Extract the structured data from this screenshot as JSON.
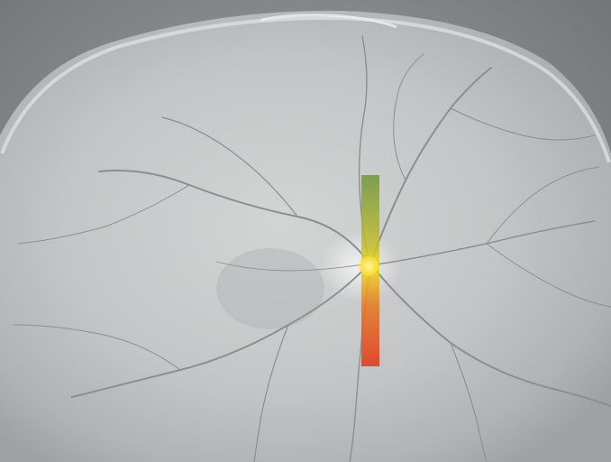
{
  "image": {
    "subject": "fundus-retina",
    "colors": {
      "background": "#ffffff",
      "retina_gray": "#bfc1c2",
      "strip_top": "#6e963c",
      "strip_middle": "#ebdc1e",
      "strip_bottom": "#e13c1e"
    }
  }
}
